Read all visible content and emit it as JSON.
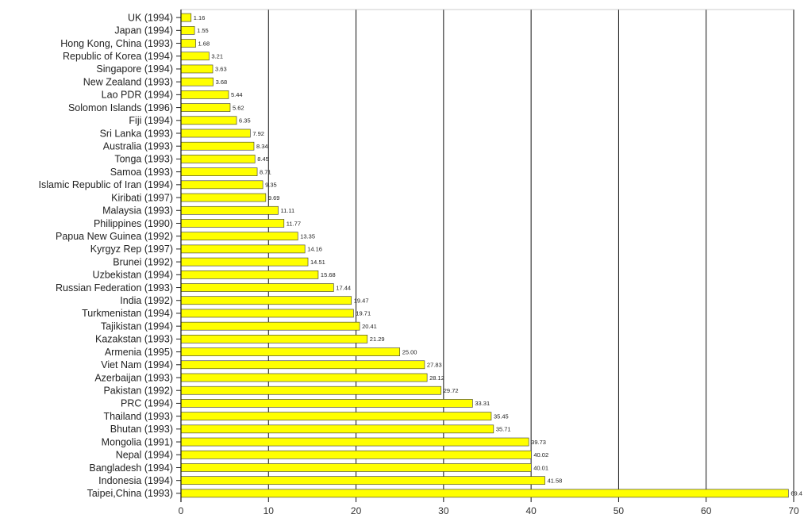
{
  "chart_data": {
    "type": "bar",
    "orientation": "horizontal",
    "categories": [
      "UK (1994)",
      "Japan (1994)",
      "Hong Kong, China (1993)",
      "Republic of Korea (1994)",
      "Singapore (1994)",
      "New Zealand (1993)",
      "Lao PDR (1994)",
      "Solomon Islands (1996)",
      "Fiji (1994)",
      "Sri Lanka (1993)",
      "Australia (1993)",
      "Tonga (1993)",
      "Samoa (1993)",
      "Islamic Republic of Iran (1994)",
      "Kiribati (1997)",
      "Malaysia (1993)",
      "Philippines (1990)",
      "Papua New Guinea (1992)",
      "Kyrgyz Rep (1997)",
      "Brunei (1992)",
      "Uzbekistan (1994)",
      "Russian Federation (1993)",
      "India (1992)",
      "Turkmenistan (1994)",
      "Tajikistan (1994)",
      "Kazakstan (1993)",
      "Armenia (1995)",
      "Viet Nam (1994)",
      "Azerbaijan (1993)",
      "Pakistan (1992)",
      "PRC (1994)",
      "Thailand (1993)",
      "Bhutan (1993)",
      "Mongolia (1991)",
      "Nepal (1994)",
      "Bangladesh (1994)",
      "Indonesia (1994)",
      "Taipei,China (1993)"
    ],
    "values": [
      1.16,
      1.55,
      1.68,
      3.21,
      3.63,
      3.68,
      5.44,
      5.62,
      6.35,
      7.92,
      8.34,
      8.45,
      8.71,
      9.35,
      9.69,
      11.11,
      11.77,
      13.35,
      14.16,
      14.51,
      15.68,
      17.44,
      19.47,
      19.71,
      20.41,
      21.29,
      25.0,
      27.83,
      28.12,
      29.72,
      33.31,
      35.45,
      35.71,
      39.73,
      40.02,
      40.01,
      41.58,
      69.4
    ],
    "value_labels": [
      "1.16",
      "1.55",
      "1.68",
      "3.21",
      "3.63",
      "3.68",
      "5.44",
      "5.62",
      "6.35",
      "7.92",
      "8.34",
      "8.45",
      "8.71",
      "9.35",
      "9.69",
      "11.11",
      "11.77",
      "13.35",
      "14.16",
      "14.51",
      "15.68",
      "17.44",
      "19.47",
      "19.71",
      "20.41",
      "21.29",
      "25.00",
      "27.83",
      "28.12",
      "29.72",
      "33.31",
      "35.45",
      "35.71",
      "39.73",
      "40.02",
      "40.01",
      "41.58",
      "69.4"
    ],
    "xlim": [
      0,
      70
    ],
    "xticks": [
      0,
      10,
      20,
      30,
      40,
      50,
      60,
      70
    ],
    "xtick_labels": [
      "0",
      "10",
      "20",
      "30",
      "40",
      "50",
      "60",
      "70"
    ],
    "grid": "vertical",
    "bar_color": "#ffff00",
    "bar_edge_color": "#333333"
  }
}
